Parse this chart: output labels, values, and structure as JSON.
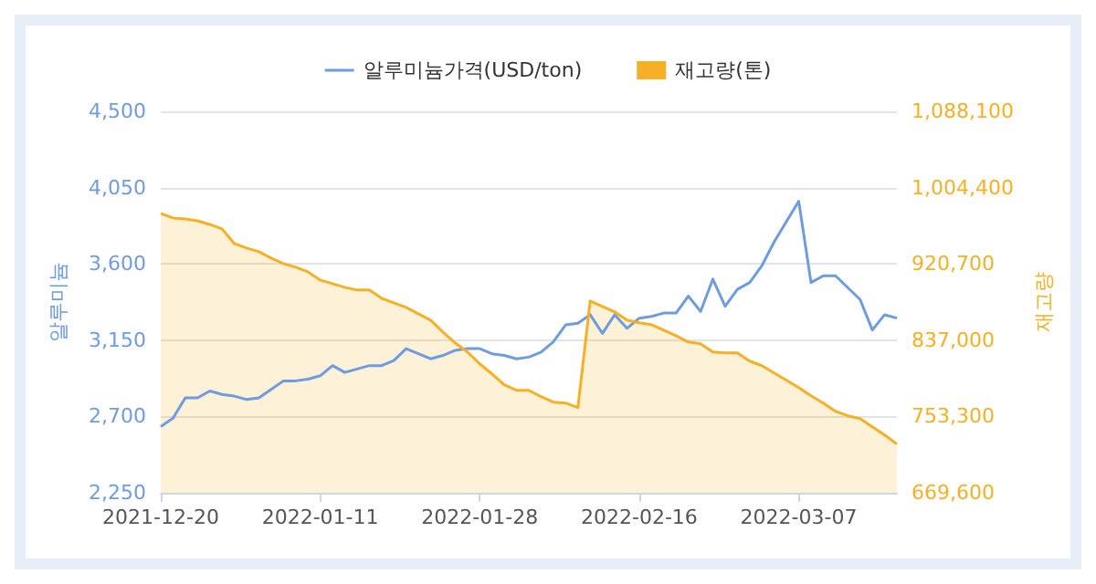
{
  "chart_data": {
    "type": "line",
    "ylabel": "알루미늄",
    "y2label": "재고량",
    "categories": [
      "2021-12-20",
      null,
      null,
      null,
      null,
      null,
      null,
      null,
      null,
      null,
      null,
      null,
      null,
      "2022-01-11",
      null,
      null,
      null,
      null,
      null,
      null,
      null,
      null,
      null,
      null,
      null,
      null,
      "2022-01-28",
      null,
      null,
      null,
      null,
      null,
      null,
      null,
      null,
      null,
      null,
      null,
      null,
      "2022-02-16",
      null,
      null,
      null,
      null,
      null,
      null,
      null,
      null,
      null,
      null,
      null,
      null,
      "2022-03-07",
      null,
      null,
      null,
      null,
      null,
      null,
      null,
      null
    ],
    "series": [
      {
        "name": "알루미늄가격(USD/ton)",
        "type": "line",
        "color": "#6f9be0",
        "values": [
          2640,
          2690,
          2810,
          2810,
          2850,
          2830,
          2820,
          2800,
          2810,
          2860,
          2910,
          2910,
          2920,
          2940,
          3000,
          2960,
          2980,
          3000,
          3000,
          3030,
          3100,
          3070,
          3040,
          3060,
          3090,
          3100,
          3100,
          3070,
          3060,
          3040,
          3050,
          3080,
          3140,
          3240,
          3250,
          3300,
          3190,
          3300,
          3220,
          3280,
          3290,
          3310,
          3310,
          3410,
          3320,
          3510,
          3350,
          3450,
          3490,
          3590,
          3730,
          3850,
          3970,
          3490,
          3530,
          3530,
          3460,
          3390,
          3210,
          3300,
          3280
        ]
      },
      {
        "name": "재고량(톤)",
        "type": "area",
        "axis": "y2",
        "color": "#f5b025",
        "values": [
          976000,
          971000,
          970000,
          968000,
          964000,
          959000,
          943000,
          938000,
          934000,
          927000,
          921000,
          917000,
          912000,
          903000,
          899000,
          895000,
          892000,
          892000,
          883000,
          878000,
          873000,
          866000,
          859000,
          846000,
          834000,
          824000,
          811000,
          800000,
          788000,
          782000,
          782000,
          775000,
          769000,
          768000,
          763000,
          880000,
          874000,
          868000,
          859000,
          856000,
          854000,
          848000,
          842000,
          835000,
          833000,
          824000,
          823000,
          823000,
          814000,
          809000,
          801000,
          793000,
          785000,
          776000,
          768000,
          759000,
          754000,
          751000,
          742000,
          733000,
          723000
        ]
      }
    ],
    "ylim": [
      2250,
      4500
    ],
    "yticks": [
      {
        "value": 2250,
        "label": "2,250"
      },
      {
        "value": 2700,
        "label": "2,700"
      },
      {
        "value": 3150,
        "label": "3,150"
      },
      {
        "value": 3600,
        "label": "3,600"
      },
      {
        "value": 4050,
        "label": "4,050"
      },
      {
        "value": 4500,
        "label": "4,500"
      }
    ],
    "y2lim": [
      669600,
      1088100
    ],
    "y2ticks": [
      {
        "value": 669600,
        "label": "669,600"
      },
      {
        "value": 753300,
        "label": "753,300"
      },
      {
        "value": 837000,
        "label": "837,000"
      },
      {
        "value": 920700,
        "label": "920,700"
      },
      {
        "value": 1004400,
        "label": "1,004,400"
      },
      {
        "value": 1088100,
        "label": "1,088,100"
      }
    ],
    "grid": "y",
    "legend": "top",
    "marker": "none",
    "line_style": "solid"
  }
}
